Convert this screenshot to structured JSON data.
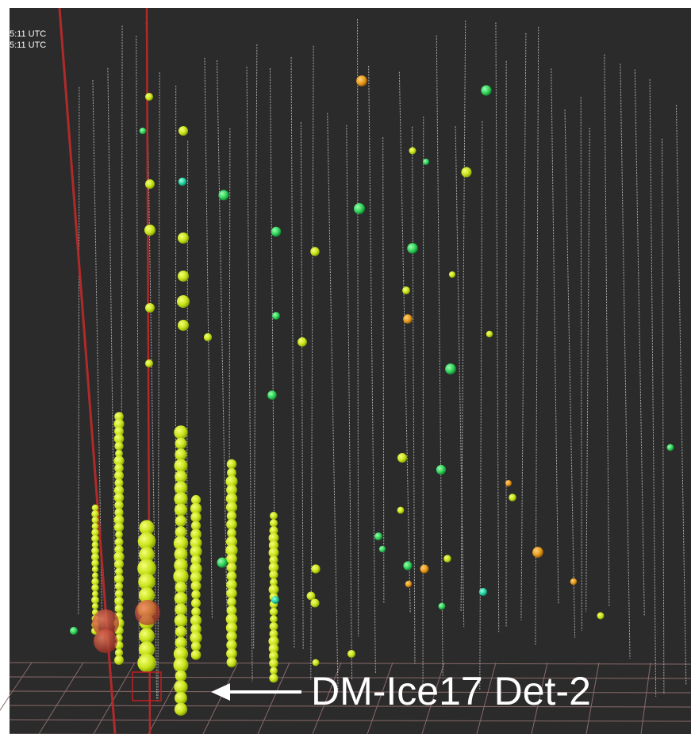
{
  "overlay": {
    "timestamps": [
      "5:11 UTC",
      "5:11 UTC"
    ]
  },
  "annotation": {
    "label": "DM-Ice17 Det-2"
  }
}
